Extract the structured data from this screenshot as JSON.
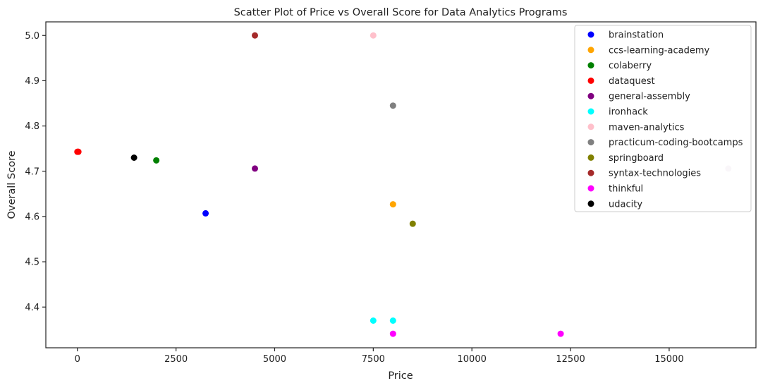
{
  "chart_data": {
    "type": "scatter",
    "title": "Scatter Plot of Price vs Overall Score for Data Analytics Programs",
    "xlabel": "Price",
    "ylabel": "Overall Score",
    "xlim": [
      -800,
      17200
    ],
    "ylim": [
      4.31,
      5.03
    ],
    "xticks": [
      0,
      2500,
      5000,
      7500,
      10000,
      12500,
      15000
    ],
    "xtick_labels": [
      "0",
      "2500",
      "5000",
      "7500",
      "10000",
      "12500",
      "15000"
    ],
    "yticks": [
      4.4,
      4.5,
      4.6,
      4.7,
      4.8,
      4.9,
      5.0
    ],
    "ytick_labels": [
      "4.4",
      "4.5",
      "4.6",
      "4.7",
      "4.8",
      "4.9",
      "5.0"
    ],
    "grid": false,
    "legend_position": "top-right",
    "series": [
      {
        "name": "brainstation",
        "color": "#0000ff",
        "points": [
          [
            3250,
            4.607
          ]
        ]
      },
      {
        "name": "ccs-learning-academy",
        "color": "#ffa500",
        "points": [
          [
            8000,
            4.627
          ]
        ]
      },
      {
        "name": "colaberry",
        "color": "#008000",
        "points": [
          [
            2000,
            4.724
          ]
        ]
      },
      {
        "name": "dataquest",
        "color": "#ff0000",
        "points": [
          [
            0,
            4.743
          ],
          [
            25,
            4.743
          ]
        ]
      },
      {
        "name": "general-assembly",
        "color": "#800080",
        "points": [
          [
            4500,
            4.706
          ]
        ]
      },
      {
        "name": "ironhack",
        "color": "#00ffff",
        "points": [
          [
            7500,
            4.37
          ],
          [
            8000,
            4.37
          ]
        ]
      },
      {
        "name": "maven-analytics",
        "color": "#ffc0cb",
        "points": [
          [
            7500,
            5.0
          ]
        ]
      },
      {
        "name": "practicum-coding-bootcamps",
        "color": "#808080",
        "points": [
          [
            8000,
            4.845
          ]
        ]
      },
      {
        "name": "springboard",
        "color": "#808000",
        "points": [
          [
            8500,
            4.584
          ]
        ]
      },
      {
        "name": "syntax-technologies",
        "color": "#a52a2a",
        "points": [
          [
            4500,
            5.0
          ]
        ]
      },
      {
        "name": "thinkful",
        "color": "#ff00ff",
        "points": [
          [
            8000,
            4.341
          ],
          [
            12250,
            4.341
          ]
        ]
      },
      {
        "name": "udacity",
        "color": "#000000",
        "points": [
          [
            1436,
            4.73
          ]
        ]
      }
    ],
    "unlabeled_points": [
      {
        "color": "#d8bfd8",
        "points": [
          [
            16500,
            4.706
          ]
        ]
      }
    ]
  }
}
